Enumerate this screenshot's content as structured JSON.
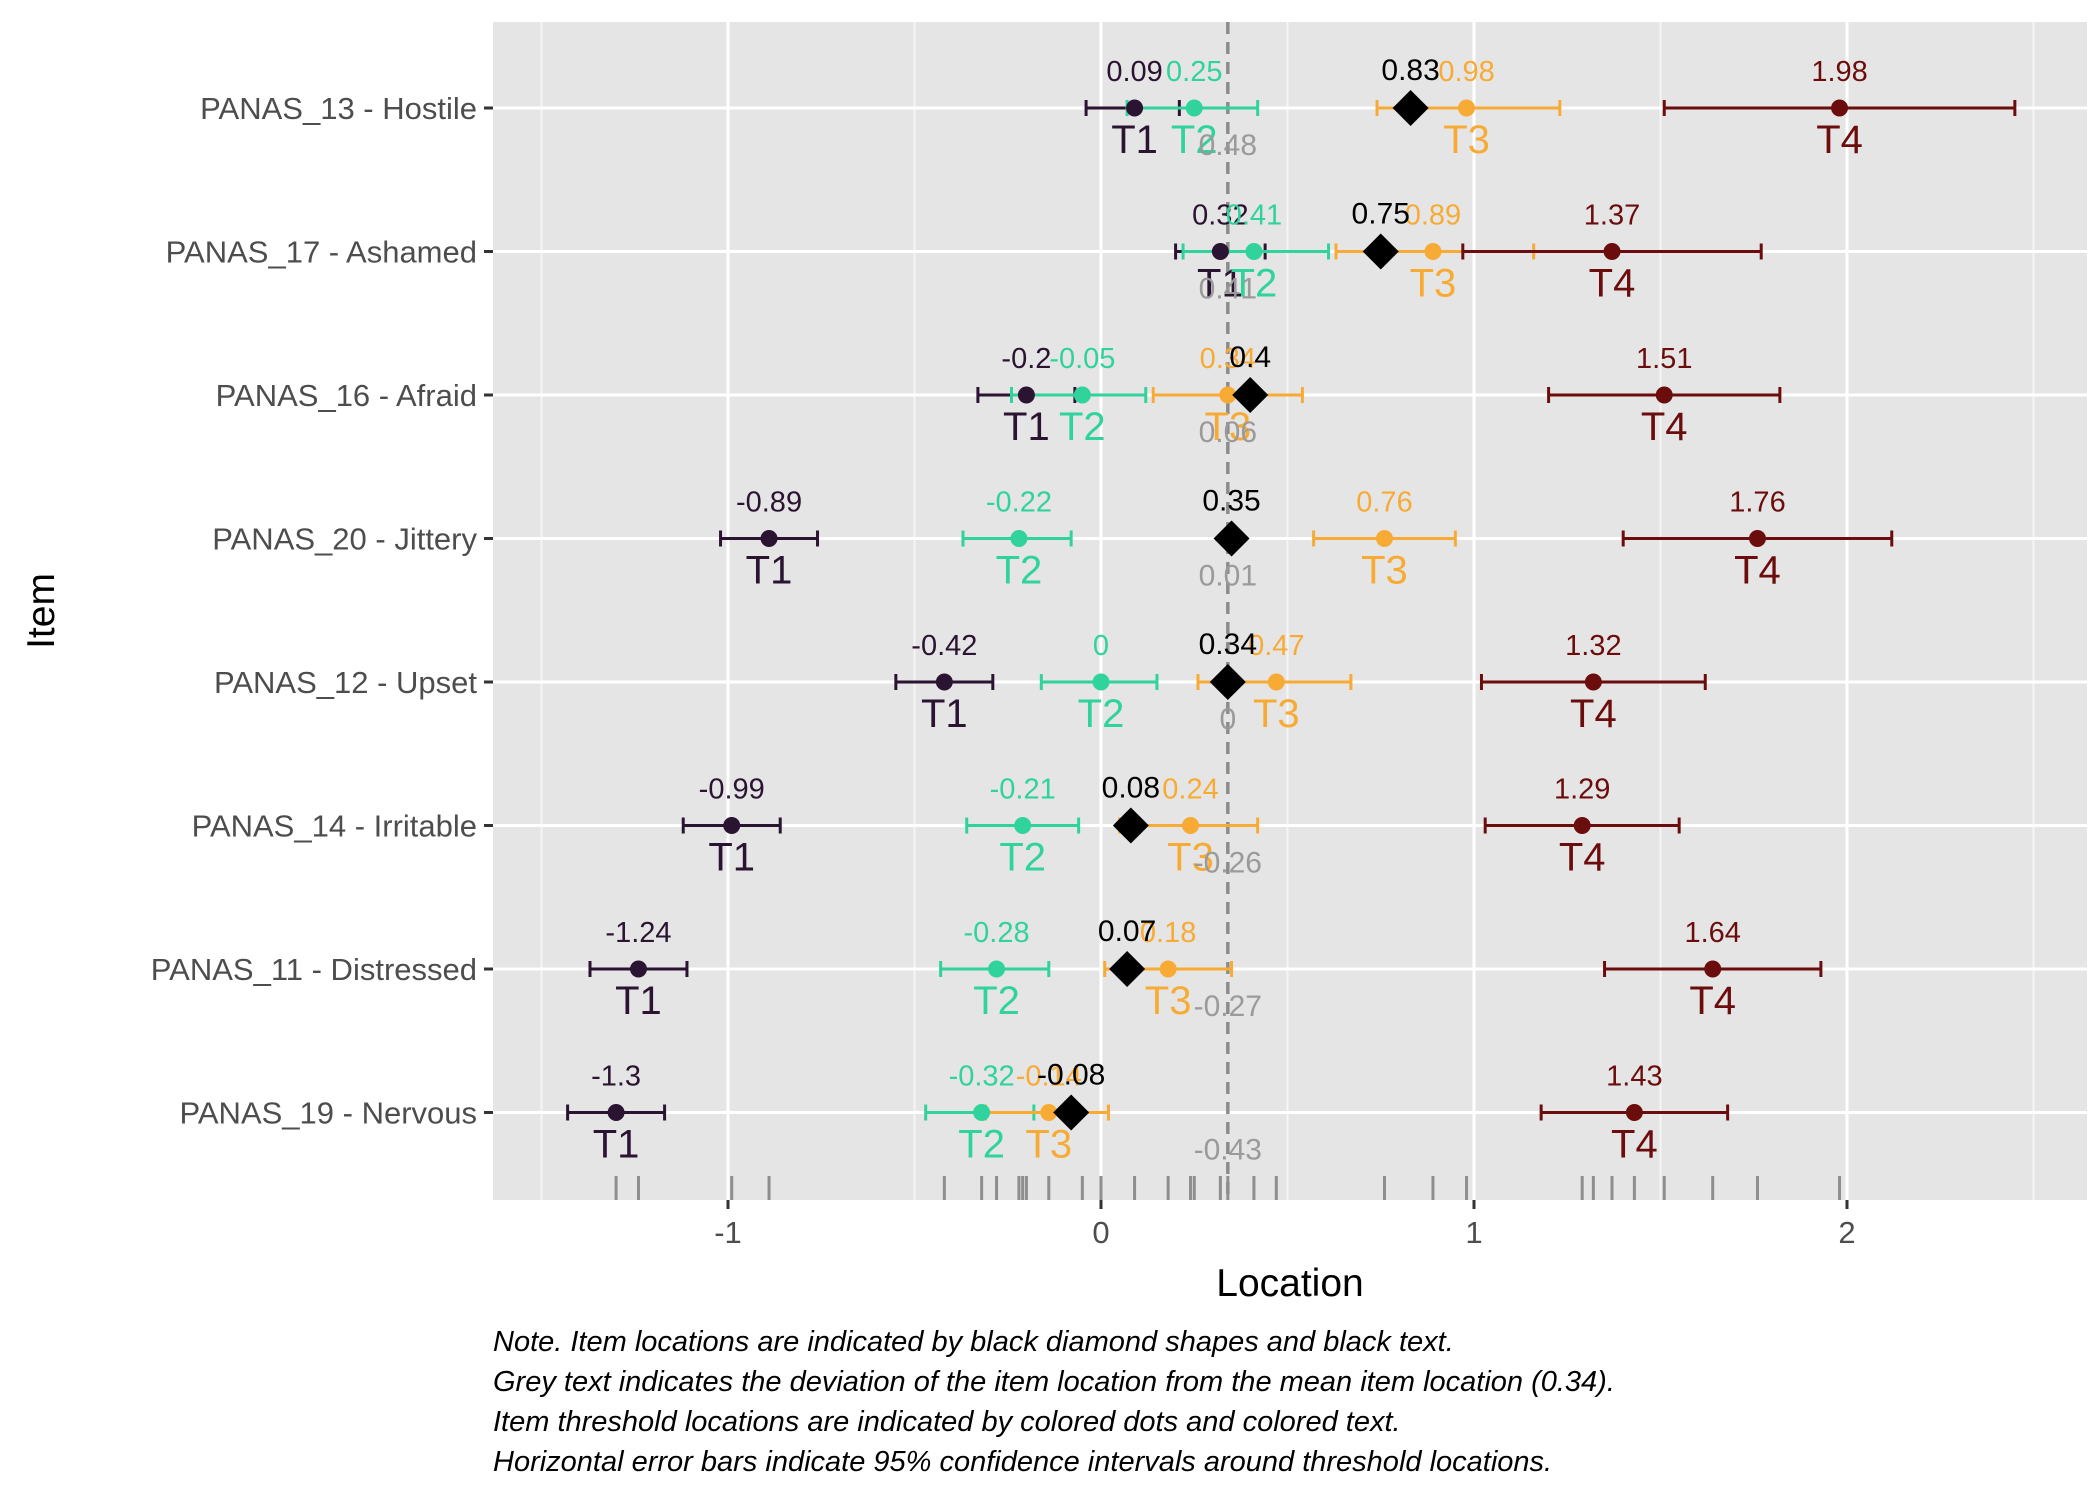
{
  "chart_data": {
    "type": "scatter",
    "xlabel": "Location",
    "ylabel": "Item",
    "xlim": [
      -1.6,
      2.5
    ],
    "x_ticks": [
      -1,
      0,
      1,
      2
    ],
    "grid": true,
    "mean_location": 0.34,
    "threshold_colors": {
      "T1": "#2b1332",
      "T2": "#30d39b",
      "T3": "#f7ab35",
      "T4": "#6c0d0d"
    },
    "item_color": "#000000",
    "deviation_color": "#9a9a9a",
    "reference_line_color": "#8c8c8c",
    "items": [
      {
        "name": "PANAS_13 - Hostile",
        "location": 0.83,
        "location_label": "0.83",
        "deviation": 0.48,
        "deviation_label": "0.48",
        "thresholds": [
          {
            "name": "T1",
            "value": 0.09,
            "label": "0.09",
            "ci": [
              -0.04,
              0.21
            ]
          },
          {
            "name": "T2",
            "value": 0.25,
            "label": "0.25",
            "ci": [
              0.07,
              0.42
            ]
          },
          {
            "name": "T3",
            "value": 0.98,
            "label": "0.98",
            "ci": [
              0.74,
              1.23
            ]
          },
          {
            "name": "T4",
            "value": 1.98,
            "label": "1.98",
            "ci": [
              1.51,
              2.45
            ]
          }
        ]
      },
      {
        "name": "PANAS_17 - Ashamed",
        "location": 0.75,
        "location_label": "0.75",
        "deviation": 0.41,
        "deviation_label": "0.41",
        "thresholds": [
          {
            "name": "T1",
            "value": 0.32,
            "label": "0.32",
            "ci": [
              0.2,
              0.44
            ]
          },
          {
            "name": "T2",
            "value": 0.41,
            "label": "0.41",
            "ci": [
              0.22,
              0.61
            ]
          },
          {
            "name": "T3",
            "value": 0.89,
            "label": "0.89",
            "ci": [
              0.63,
              1.16
            ]
          },
          {
            "name": "T4",
            "value": 1.37,
            "label": "1.37",
            "ci": [
              0.97,
              1.77
            ]
          }
        ]
      },
      {
        "name": "PANAS_16 - Afraid",
        "location": 0.4,
        "location_label": "0.4",
        "deviation": 0.06,
        "deviation_label": "0.06",
        "thresholds": [
          {
            "name": "T1",
            "value": -0.2,
            "label": "-0.2",
            "ci": [
              -0.33,
              -0.07
            ]
          },
          {
            "name": "T2",
            "value": -0.05,
            "label": "-0.05",
            "ci": [
              -0.24,
              0.12
            ]
          },
          {
            "name": "T3",
            "value": 0.34,
            "label": "0.34",
            "ci": [
              0.14,
              0.54
            ]
          },
          {
            "name": "T4",
            "value": 1.51,
            "label": "1.51",
            "ci": [
              1.2,
              1.82
            ]
          }
        ]
      },
      {
        "name": "PANAS_20 - Jittery",
        "location": 0.35,
        "location_label": "0.35",
        "deviation": 0.01,
        "deviation_label": "0.01",
        "thresholds": [
          {
            "name": "T1",
            "value": -0.89,
            "label": "-0.89",
            "ci": [
              -1.02,
              -0.76
            ]
          },
          {
            "name": "T2",
            "value": -0.22,
            "label": "-0.22",
            "ci": [
              -0.37,
              -0.08
            ]
          },
          {
            "name": "T3",
            "value": 0.76,
            "label": "0.76",
            "ci": [
              0.57,
              0.95
            ]
          },
          {
            "name": "T4",
            "value": 1.76,
            "label": "1.76",
            "ci": [
              1.4,
              2.12
            ]
          }
        ]
      },
      {
        "name": "PANAS_12 - Upset",
        "location": 0.34,
        "location_label": "0.34",
        "deviation": 0.0,
        "deviation_label": "0",
        "thresholds": [
          {
            "name": "T1",
            "value": -0.42,
            "label": "-0.42",
            "ci": [
              -0.55,
              -0.29
            ]
          },
          {
            "name": "T2",
            "value": 0.0,
            "label": "0",
            "ci": [
              -0.16,
              0.15
            ]
          },
          {
            "name": "T3",
            "value": 0.47,
            "label": "0.47",
            "ci": [
              0.26,
              0.67
            ]
          },
          {
            "name": "T4",
            "value": 1.32,
            "label": "1.32",
            "ci": [
              1.02,
              1.62
            ]
          }
        ]
      },
      {
        "name": "PANAS_14 - Irritable",
        "location": 0.08,
        "location_label": "0.08",
        "deviation": -0.26,
        "deviation_label": "-0.26",
        "thresholds": [
          {
            "name": "T1",
            "value": -0.99,
            "label": "-0.99",
            "ci": [
              -1.12,
              -0.86
            ]
          },
          {
            "name": "T2",
            "value": -0.21,
            "label": "-0.21",
            "ci": [
              -0.36,
              -0.06
            ]
          },
          {
            "name": "T3",
            "value": 0.24,
            "label": "0.24",
            "ci": [
              0.05,
              0.42
            ]
          },
          {
            "name": "T4",
            "value": 1.29,
            "label": "1.29",
            "ci": [
              1.03,
              1.55
            ]
          }
        ]
      },
      {
        "name": "PANAS_11 - Distressed",
        "location": 0.07,
        "location_label": "0.07",
        "deviation": -0.27,
        "deviation_label": "-0.27",
        "thresholds": [
          {
            "name": "T1",
            "value": -1.24,
            "label": "-1.24",
            "ci": [
              -1.37,
              -1.11
            ]
          },
          {
            "name": "T2",
            "value": -0.28,
            "label": "-0.28",
            "ci": [
              -0.43,
              -0.14
            ]
          },
          {
            "name": "T3",
            "value": 0.18,
            "label": "0.18",
            "ci": [
              0.01,
              0.35
            ]
          },
          {
            "name": "T4",
            "value": 1.64,
            "label": "1.64",
            "ci": [
              1.35,
              1.93
            ]
          }
        ]
      },
      {
        "name": "PANAS_19 - Nervous",
        "location": -0.08,
        "location_label": "-0.08",
        "deviation": -0.43,
        "deviation_label": "-0.43",
        "thresholds": [
          {
            "name": "T1",
            "value": -1.3,
            "label": "-1.3",
            "ci": [
              -1.43,
              -1.17
            ]
          },
          {
            "name": "T2",
            "value": -0.32,
            "label": "-0.32",
            "ci": [
              -0.47,
              -0.18
            ]
          },
          {
            "name": "T3",
            "value": -0.14,
            "label": "-0.14",
            "ci": [
              -0.31,
              0.02
            ]
          },
          {
            "name": "T4",
            "value": 1.43,
            "label": "1.43",
            "ci": [
              1.18,
              1.68
            ]
          }
        ]
      }
    ],
    "rug": [
      -1.3,
      -1.24,
      -0.99,
      -0.89,
      -0.42,
      -0.32,
      -0.28,
      -0.22,
      -0.21,
      -0.2,
      -0.14,
      -0.05,
      0.0,
      0.09,
      0.18,
      0.24,
      0.25,
      0.32,
      0.34,
      0.41,
      0.47,
      0.76,
      0.89,
      0.98,
      1.29,
      1.32,
      1.37,
      1.43,
      1.51,
      1.64,
      1.76,
      1.98
    ]
  },
  "note": {
    "line1": "Note. Item locations are indicated by black diamond shapes and black text.",
    "line2": "Grey text indicates the deviation of the item location from the mean item location (0.34).",
    "line3": "Item threshold locations are indicated by colored dots and colored text.",
    "line4": "Horizontal error bars indicate 95% confidence intervals around threshold locations."
  }
}
